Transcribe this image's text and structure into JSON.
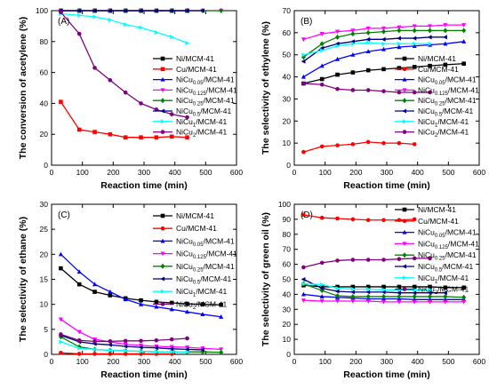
{
  "chart_data": [
    {
      "panel_label": "(A)",
      "type": "line",
      "xlabel": "Reaction time (min)",
      "ylabel": "The conversion of acetylene (%)",
      "xlim": [
        0,
        600
      ],
      "ylim": [
        0,
        100
      ],
      "xticks": [
        0,
        100,
        200,
        300,
        400,
        500,
        600
      ],
      "yticks": [
        0,
        20,
        40,
        60,
        80,
        100
      ],
      "legend_position": "right",
      "series": [
        {
          "name": "Ni/MCM-41",
          "color": "#000000",
          "marker": "square",
          "x": [
            30,
            90,
            140,
            190,
            240,
            290,
            340,
            390,
            440
          ],
          "y": [
            100,
            100,
            100,
            100,
            100,
            100,
            100,
            100,
            100
          ]
        },
        {
          "name": "Cu/MCM-41",
          "color": "#ff0000",
          "marker": "square",
          "x": [
            30,
            90,
            140,
            190,
            240,
            290,
            340,
            390,
            440
          ],
          "y": [
            41,
            23,
            21.5,
            20,
            18,
            18,
            18,
            18.5,
            18
          ]
        },
        {
          "name": "NiCu",
          "sub": "0.05",
          "suffix": "/MCM-41",
          "color": "#0000ff",
          "marker": "triangle",
          "x": [
            30,
            90,
            140,
            190,
            240,
            290,
            340,
            390,
            440
          ],
          "y": [
            100,
            100,
            100,
            100,
            100,
            100,
            100,
            100,
            100
          ]
        },
        {
          "name": "NiCu",
          "sub": "0.125",
          "suffix": "/MCM-41",
          "color": "#ff00ff",
          "marker": "triangle-down",
          "x": [
            30,
            90,
            140,
            190,
            240,
            290,
            340,
            390,
            440,
            490,
            550
          ],
          "y": [
            100,
            100,
            100,
            100,
            100,
            100,
            100,
            100,
            100,
            100,
            100
          ]
        },
        {
          "name": "NiCu",
          "sub": "0.25",
          "suffix": "/MCM-41",
          "color": "#008000",
          "marker": "diamond",
          "x": [
            30,
            90,
            140,
            190,
            240,
            290,
            340,
            390,
            440,
            490,
            550
          ],
          "y": [
            100,
            100,
            100,
            100,
            100,
            100,
            100,
            100,
            100,
            100,
            100
          ]
        },
        {
          "name": "NiCu",
          "sub": "0.5",
          "suffix": "/MCM-41",
          "color": "#000080",
          "marker": "triangle-left",
          "x": [
            30,
            90,
            140,
            190,
            240,
            290,
            340,
            390,
            440,
            490
          ],
          "y": [
            100,
            100,
            100,
            100,
            100,
            100,
            100,
            100,
            100,
            100
          ]
        },
        {
          "name": "NiCu",
          "sub": "1",
          "suffix": "/MCM-41",
          "color": "#00ffff",
          "marker": "triangle-right",
          "x": [
            30,
            90,
            140,
            190,
            240,
            290,
            340,
            390,
            440
          ],
          "y": [
            98,
            97,
            96,
            94,
            91,
            89,
            86,
            83,
            79
          ]
        },
        {
          "name": "NiCu",
          "sub": "2",
          "suffix": "/MCM-41",
          "color": "#800080",
          "marker": "circle",
          "x": [
            30,
            90,
            140,
            190,
            240,
            290,
            340,
            390,
            440
          ],
          "y": [
            99,
            85,
            63,
            55,
            47,
            40,
            36,
            33,
            31
          ]
        }
      ]
    },
    {
      "panel_label": "(B)",
      "type": "line",
      "xlabel": "Reaction time (min)",
      "ylabel": "The selectivity of ethylene (%)",
      "xlim": [
        0,
        600
      ],
      "ylim": [
        0,
        70
      ],
      "xticks": [
        0,
        100,
        200,
        300,
        400,
        500,
        600
      ],
      "yticks": [
        0,
        10,
        20,
        30,
        40,
        50,
        60,
        70
      ],
      "legend_position": "right",
      "series": [
        {
          "name": "Ni/MCM-41",
          "color": "#000000",
          "marker": "square",
          "x": [
            30,
            90,
            140,
            190,
            240,
            290,
            340,
            390,
            440,
            490,
            550
          ],
          "y": [
            37,
            39,
            41,
            42,
            43,
            43.5,
            44,
            44.5,
            45,
            45.5,
            46
          ]
        },
        {
          "name": "Cu/MCM-41",
          "color": "#ff0000",
          "marker": "circle",
          "x": [
            30,
            90,
            140,
            190,
            240,
            290,
            340,
            390
          ],
          "y": [
            6,
            8.5,
            9,
            9.5,
            10.5,
            10,
            10,
            9.5
          ]
        },
        {
          "name": "NiCu",
          "sub": "0.05",
          "suffix": "/MCM-41",
          "color": "#0000ff",
          "marker": "triangle",
          "x": [
            30,
            90,
            140,
            190,
            240,
            290,
            340,
            390,
            440,
            490,
            550
          ],
          "y": [
            40,
            45,
            48,
            50,
            51.5,
            52.5,
            53.5,
            54,
            54.5,
            55,
            56
          ]
        },
        {
          "name": "NiCu",
          "sub": "0.125",
          "suffix": "/MCM-41",
          "color": "#ff00ff",
          "marker": "triangle-down",
          "x": [
            30,
            90,
            140,
            190,
            240,
            290,
            340,
            390,
            440,
            490,
            550
          ],
          "y": [
            57,
            59.5,
            60.5,
            61,
            62,
            62,
            62.5,
            63,
            63,
            63.5,
            63.5
          ]
        },
        {
          "name": "NiCu",
          "sub": "0.25",
          "suffix": "/MCM-41",
          "color": "#008000",
          "marker": "diamond",
          "x": [
            30,
            90,
            140,
            190,
            240,
            290,
            340,
            390,
            440,
            490,
            550
          ],
          "y": [
            49,
            55,
            58,
            59.5,
            60,
            60.5,
            61,
            61,
            61,
            61,
            61
          ]
        },
        {
          "name": "NiCu",
          "sub": "0.5",
          "suffix": "/MCM-41",
          "color": "#000080",
          "marker": "triangle-left",
          "x": [
            30,
            90,
            140,
            190,
            240,
            290,
            340,
            390,
            440,
            490
          ],
          "y": [
            47,
            53,
            55,
            56,
            57,
            57,
            57.5,
            57.5,
            58,
            58
          ]
        },
        {
          "name": "NiCu",
          "sub": "1",
          "suffix": "/MCM-41",
          "color": "#00ffff",
          "marker": "triangle-right",
          "x": [
            30,
            90,
            140,
            190,
            240,
            290,
            340,
            390,
            440
          ],
          "y": [
            50,
            52,
            54,
            55,
            55.5,
            55,
            55,
            55,
            55
          ]
        },
        {
          "name": "NiCu",
          "sub": "2",
          "suffix": "/MCM-41",
          "color": "#800080",
          "marker": "circle",
          "x": [
            30,
            90,
            140,
            190,
            240,
            290,
            340,
            390,
            440
          ],
          "y": [
            37,
            36.5,
            34.5,
            34,
            34,
            33.5,
            33,
            33,
            33
          ]
        }
      ]
    },
    {
      "panel_label": "(C)",
      "type": "line",
      "xlabel": "Reaction time (min)",
      "ylabel": "The selectivity of ethane (%)",
      "xlim": [
        0,
        600
      ],
      "ylim": [
        0,
        30
      ],
      "xticks": [
        0,
        100,
        200,
        300,
        400,
        500,
        600
      ],
      "yticks": [
        0,
        5,
        10,
        15,
        20,
        25,
        30
      ],
      "legend_position": "top-right",
      "series": [
        {
          "name": "Ni/MCM-41",
          "color": "#000000",
          "marker": "square",
          "x": [
            30,
            90,
            140,
            190,
            240,
            290,
            340,
            390,
            440,
            490,
            550
          ],
          "y": [
            17.2,
            14,
            12.5,
            11.8,
            11.2,
            10.8,
            10.5,
            10.3,
            10.1,
            10,
            9.9
          ]
        },
        {
          "name": "Cu/MCM-41",
          "color": "#ff0000",
          "marker": "circle",
          "x": [
            30,
            90,
            140,
            190,
            240,
            290,
            340,
            390
          ],
          "y": [
            0.3,
            0.1,
            0.1,
            0.1,
            0.1,
            0.1,
            0.1,
            0.1
          ]
        },
        {
          "name": "NiCu",
          "sub": "0.05",
          "suffix": "/MCM-41",
          "color": "#0000ff",
          "marker": "triangle",
          "x": [
            30,
            90,
            140,
            190,
            240,
            290,
            340,
            390,
            440,
            490,
            550
          ],
          "y": [
            20,
            16.5,
            14,
            12.5,
            11,
            10,
            9.5,
            9,
            8.5,
            8,
            7.5
          ]
        },
        {
          "name": "NiCu",
          "sub": "0.125",
          "suffix": "/MCM-41",
          "color": "#ff00ff",
          "marker": "triangle-down",
          "x": [
            30,
            90,
            140,
            190,
            240,
            290,
            340,
            390,
            440,
            490,
            550
          ],
          "y": [
            7,
            4.5,
            3,
            2.5,
            2,
            1.8,
            1.6,
            1.5,
            1.4,
            1.2,
            1
          ]
        },
        {
          "name": "NiCu",
          "sub": "0.25",
          "suffix": "/MCM-41",
          "color": "#008000",
          "marker": "diamond",
          "x": [
            30,
            90,
            140,
            190,
            240,
            290,
            340,
            390,
            440,
            490,
            550
          ],
          "y": [
            3.5,
            1.5,
            1,
            0.8,
            0.7,
            0.6,
            0.5,
            0.5,
            0.5,
            0.5,
            0.4
          ]
        },
        {
          "name": "NiCu",
          "sub": "0.5",
          "suffix": "/MCM-41",
          "color": "#000080",
          "marker": "triangle-left",
          "x": [
            30,
            90,
            140,
            190,
            240,
            290,
            340,
            390,
            440,
            490
          ],
          "y": [
            3.8,
            2.5,
            2.1,
            1.9,
            1.6,
            1.4,
            1.3,
            1.1,
            1,
            0.9
          ]
        },
        {
          "name": "NiCu",
          "sub": "1",
          "suffix": "/MCM-41",
          "color": "#00ffff",
          "marker": "triangle-right",
          "x": [
            30,
            90,
            140,
            190,
            240,
            290,
            340,
            390,
            440
          ],
          "y": [
            2.5,
            1.2,
            1,
            0.8,
            0.7,
            0.6,
            0.5,
            0.5,
            0.5
          ]
        },
        {
          "name": "NiCu",
          "sub": "2",
          "suffix": "/MCM-41",
          "color": "#800080",
          "marker": "circle",
          "x": [
            30,
            90,
            140,
            190,
            240,
            290,
            340,
            390,
            440
          ],
          "y": [
            4,
            2.8,
            2.6,
            2.6,
            2.7,
            2.7,
            2.8,
            3,
            3.2
          ]
        }
      ]
    },
    {
      "panel_label": "(D)",
      "type": "line",
      "xlabel": "Reaction time (min)",
      "ylabel": "The selectivity of green oil (%)",
      "xlim": [
        0,
        600
      ],
      "ylim": [
        0,
        100
      ],
      "xticks": [
        0,
        100,
        200,
        300,
        400,
        500,
        600
      ],
      "yticks": [
        0,
        10,
        20,
        30,
        40,
        50,
        60,
        70,
        80,
        90,
        100
      ],
      "legend_position": "right",
      "series": [
        {
          "name": "Ni/MCM-41",
          "color": "#000000",
          "marker": "square",
          "x": [
            30,
            90,
            140,
            190,
            240,
            290,
            340,
            390,
            440,
            490,
            550
          ],
          "y": [
            46,
            45,
            45,
            45,
            45,
            45,
            45,
            45,
            45,
            44.5,
            44.5
          ]
        },
        {
          "name": "Cu/MCM-41",
          "color": "#ff0000",
          "marker": "circle",
          "x": [
            30,
            90,
            140,
            190,
            240,
            290,
            340,
            390
          ],
          "y": [
            93,
            91,
            90.5,
            90,
            89.5,
            89.5,
            89.5,
            90
          ]
        },
        {
          "name": "NiCu",
          "sub": "0.05",
          "suffix": "/MCM-41",
          "color": "#0000ff",
          "marker": "triangle",
          "x": [
            30,
            90,
            140,
            190,
            240,
            290,
            340,
            390,
            440,
            490,
            550
          ],
          "y": [
            40,
            38.5,
            38,
            37.5,
            37,
            37,
            37,
            36.5,
            36.5,
            36.5,
            36.5
          ]
        },
        {
          "name": "NiCu",
          "sub": "0.125",
          "suffix": "/MCM-41",
          "color": "#ff00ff",
          "marker": "triangle-down",
          "x": [
            30,
            90,
            140,
            190,
            240,
            290,
            340,
            390,
            440,
            490,
            550
          ],
          "y": [
            36,
            35.5,
            35.5,
            35.5,
            35.5,
            35,
            35,
            35,
            35,
            35,
            35
          ]
        },
        {
          "name": "NiCu",
          "sub": "0.25",
          "suffix": "/MCM-41",
          "color": "#008000",
          "marker": "diamond",
          "x": [
            30,
            90,
            140,
            190,
            240,
            290,
            340,
            390,
            440,
            490,
            550
          ],
          "y": [
            47,
            42.5,
            39,
            38.5,
            38.5,
            38.5,
            38.5,
            38.5,
            38.5,
            38.5,
            38
          ]
        },
        {
          "name": "NiCu",
          "sub": "0.5",
          "suffix": "/MCM-41",
          "color": "#000080",
          "marker": "triangle-left",
          "x": [
            30,
            90,
            140,
            190,
            240,
            290,
            340,
            390,
            440,
            490
          ],
          "y": [
            50,
            44,
            42,
            41.5,
            41.5,
            41.5,
            41,
            41,
            41,
            41
          ]
        },
        {
          "name": "NiCu",
          "sub": "1",
          "suffix": "/MCM-41",
          "color": "#00ffff",
          "marker": "triangle-right",
          "x": [
            30,
            90,
            140,
            190,
            240,
            290,
            340,
            390,
            440
          ],
          "y": [
            47,
            46.5,
            44,
            43.5,
            43.5,
            43,
            43,
            43,
            43
          ]
        },
        {
          "name": "NiCu",
          "sub": "2",
          "suffix": "/MCM-41",
          "color": "#800080",
          "marker": "circle",
          "x": [
            30,
            90,
            140,
            190,
            240,
            290,
            340,
            390,
            440
          ],
          "y": [
            58,
            61,
            62.5,
            63,
            63,
            63,
            63.5,
            64,
            64
          ]
        }
      ]
    }
  ]
}
